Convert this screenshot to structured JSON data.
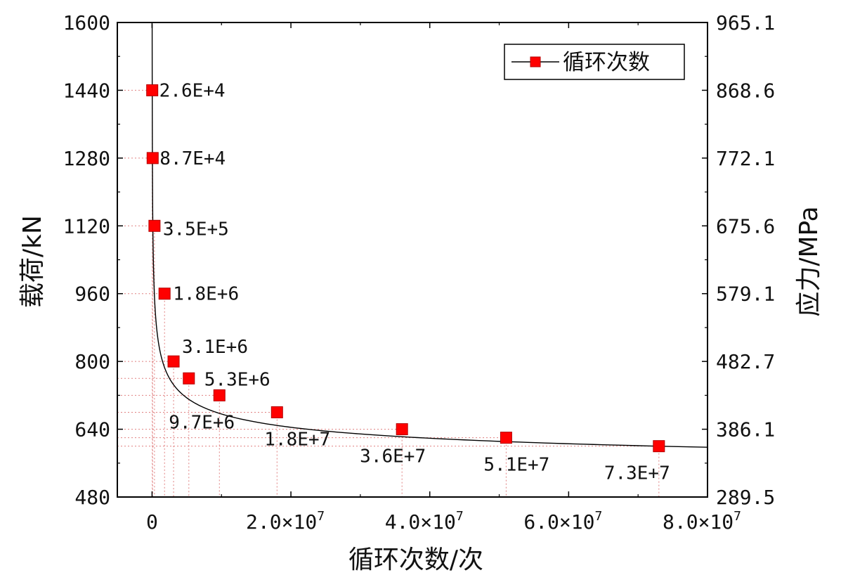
{
  "chart_data": {
    "type": "line",
    "title": "",
    "xlabel": "循环次数/次",
    "ylabel": "载荷/kN",
    "y2label": "应力/MPa",
    "xlim": [
      -5000000,
      80000000
    ],
    "ylim": [
      480,
      1600
    ],
    "y2lim": [
      289.5,
      965.1
    ],
    "x_ticks": [
      0,
      20000000,
      40000000,
      60000000,
      80000000
    ],
    "x_tick_labels": [
      "0",
      "2.0×10",
      "4.0×10",
      "6.0×10",
      "8.0×10"
    ],
    "x_tick_exponent": "7",
    "y_ticks": [
      480,
      640,
      800,
      960,
      1120,
      1280,
      1440,
      1600
    ],
    "y_tick_labels": [
      "480",
      "640",
      "800",
      "960",
      "1120",
      "1280",
      "1440",
      "1600"
    ],
    "y2_tick_labels": [
      "289.5",
      "386.1",
      "482.7",
      "579.1",
      "675.6",
      "772.1",
      "868.6",
      "965.1"
    ],
    "grid": false,
    "legend": {
      "position": "top-right",
      "entries": [
        "循环次数"
      ]
    },
    "series": [
      {
        "name": "循环次数",
        "color": "#ff0000",
        "x": [
          26000,
          87000,
          350000,
          1800000,
          3100000,
          5300000,
          9700000,
          18000000,
          36000000,
          51000000,
          73000000
        ],
        "y": [
          1440,
          1280,
          1120,
          960,
          800,
          760,
          720,
          680,
          640,
          620,
          600
        ],
        "labels": [
          "2.6E+4",
          "8.7E+4",
          "3.5E+5",
          "1.8E+6",
          "3.1E+6",
          "5.3E+6",
          "9.7E+6",
          "1.8E+7",
          "3.6E+7",
          "5.1E+7",
          "7.3E+7"
        ]
      }
    ]
  }
}
